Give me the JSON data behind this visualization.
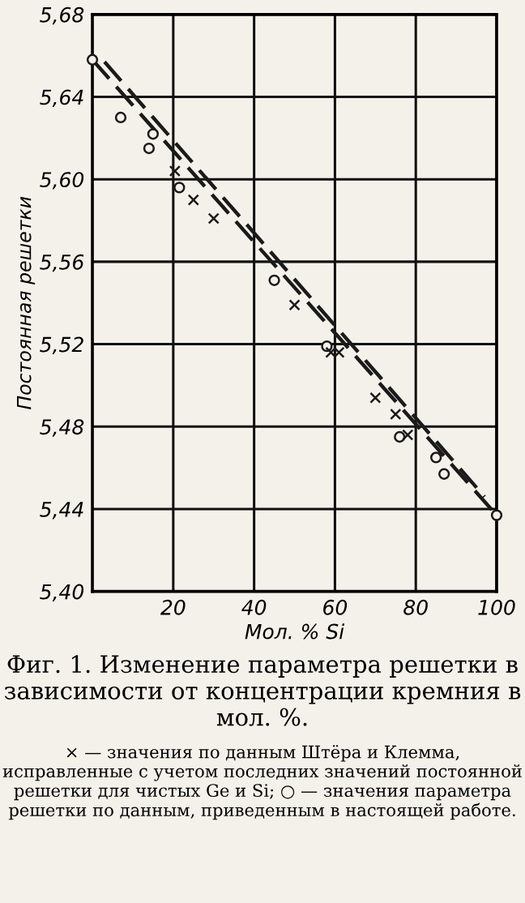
{
  "chart_data": {
    "type": "scatter",
    "title": "Фиг. 1. Изменение параметра решетки в зависимости от концентрации кремния в мол. %.",
    "xlabel": "Мол. % Si",
    "ylabel": "Постоянная решетки",
    "annotations": [
      "× — значения по данным Штёра и Клемма, исправленные с учетом последних значений постоянной решетки для чистых Ge и Si; ○ — значения параметра решетки по данным, приведенным в настоящей работе."
    ],
    "xlim": [
      0,
      100
    ],
    "xticks": [
      20,
      40,
      60,
      80,
      100
    ],
    "ylim": [
      5.4,
      5.68
    ],
    "yticks": [
      {
        "value": 5.4,
        "label": "5,40"
      },
      {
        "value": 5.44,
        "label": "5,44"
      },
      {
        "value": 5.48,
        "label": "5,48"
      },
      {
        "value": 5.52,
        "label": "5,52"
      },
      {
        "value": 5.56,
        "label": "5,56"
      },
      {
        "value": 5.6,
        "label": "5,60"
      },
      {
        "value": 5.64,
        "label": "5,64"
      },
      {
        "value": 5.68,
        "label": "5,68"
      }
    ],
    "grid": true,
    "legend": false,
    "series": [
      {
        "marker": "circle",
        "color": "#1a1a1a",
        "x": [
          0,
          7,
          15,
          14,
          21.5,
          45,
          58,
          76,
          85,
          87,
          100
        ],
        "values": [
          5.658,
          5.63,
          5.622,
          5.615,
          5.596,
          5.551,
          5.519,
          5.475,
          5.465,
          5.457,
          5.437
        ]
      },
      {
        "marker": "cross",
        "color": "#1a1a1a",
        "x": [
          20.4,
          25,
          30,
          50,
          59,
          61,
          70,
          75,
          78
        ],
        "values": [
          5.604,
          5.59,
          5.581,
          5.539,
          5.516,
          5.516,
          5.494,
          5.486,
          5.476
        ]
      },
      {
        "type": "line",
        "line_style": "dashed",
        "color": "#1a1a1a",
        "x": [
          0,
          100
        ],
        "values": [
          5.658,
          5.437
        ]
      },
      {
        "type": "line",
        "line_style": "dashed",
        "color": "#1a1a1a",
        "x": [
          3,
          97
        ],
        "values": [
          5.657,
          5.446
        ]
      }
    ]
  }
}
